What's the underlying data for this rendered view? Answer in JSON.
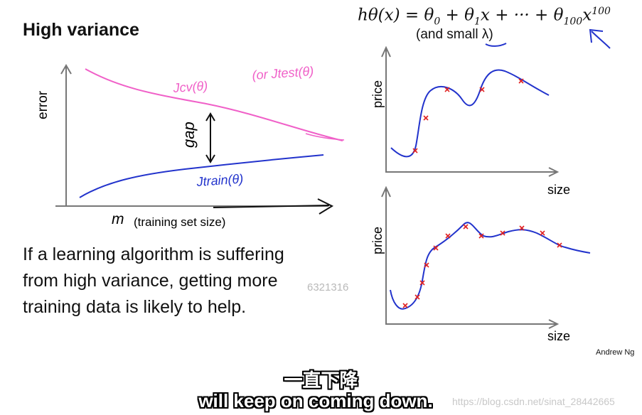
{
  "slide": {
    "title": "High variance",
    "body_lines": [
      "If a learning algorithm is suffering",
      "from high variance, getting more",
      "training data is likely to help."
    ],
    "author": "Andrew Ng"
  },
  "learning_curve": {
    "ylabel": "error",
    "xlabel_symbol": "m",
    "xlabel": "(training set size)",
    "cv_label": "Jcv(θ)",
    "test_label": "(or Jtest(θ)",
    "train_label": "Jtrain(θ)",
    "gap_label": "gap",
    "cv_color": "#f060c8",
    "train_color": "#2233cc"
  },
  "hypothesis": {
    "formula_parts": [
      "hθ(x) = θ",
      "0",
      " + θ",
      "1",
      "x + ··· + θ",
      "100",
      "x",
      "100"
    ],
    "note": "(and small λ)"
  },
  "price_plots": {
    "ylabel": "price",
    "xlabel": "size",
    "fit_color": "#2233cc",
    "point_color": "#e02020"
  },
  "overlay": {
    "watermark_mid": "6321316",
    "subtitle_cn": "一直下降",
    "subtitle_en": "will keep on coming down.",
    "watermark_url": "https://blog.csdn.net/sinat_28442665"
  }
}
